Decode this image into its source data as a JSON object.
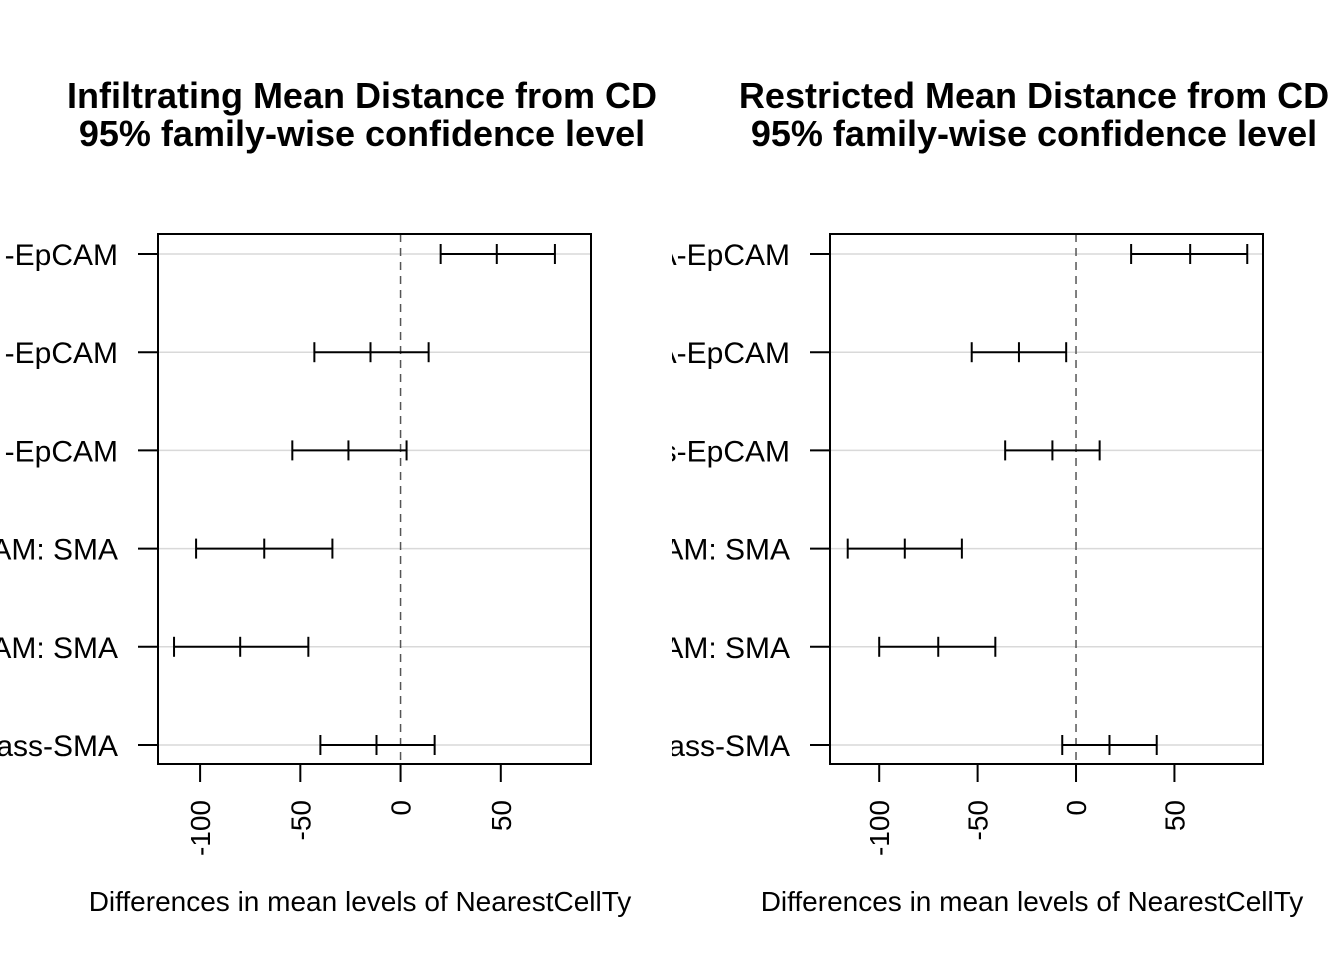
{
  "chart_data": [
    {
      "type": "interval",
      "title": "Infiltrating Mean Distance from CD",
      "subtitle": "95% family-wise confidence level",
      "xlabel": "Differences in mean levels of NearestCellTy",
      "categories": [
        "-EpCAM",
        "-EpCAM",
        "-EpCAM",
        "AM: SMA",
        "AM: SMA",
        "ass-SMA"
      ],
      "lower": [
        20,
        -43,
        -54,
        -102,
        -113,
        -40
      ],
      "estimate": [
        48,
        -15,
        -26,
        -68,
        -80,
        -12
      ],
      "upper": [
        77,
        14,
        3,
        -34,
        -46,
        17
      ],
      "xlim": [
        -121,
        95
      ],
      "xticks": [
        "-100",
        "-50",
        "0",
        "50"
      ],
      "xtick_values": [
        -100,
        -50,
        0,
        50
      ],
      "reference_line": 0,
      "grid": true
    },
    {
      "type": "interval",
      "title": "Restricted Mean Distance from CD",
      "subtitle": "95% family-wise confidence level",
      "xlabel": "Differences in mean levels of NearestCellTy",
      "categories": [
        "EpCAM: SMA-EpCAM",
        "SMA-EpCAM",
        "Unclass-EpCAM",
        "SMA-EpCAM: SMA",
        "Unclass-EpCAM: SMA",
        "Unclass-SMA"
      ],
      "lower": [
        28,
        -53,
        -36,
        -116,
        -100,
        -7
      ],
      "estimate": [
        58,
        -29,
        -12,
        -87,
        -70,
        17
      ],
      "upper": [
        87,
        -5,
        12,
        -58,
        -41,
        41
      ],
      "xlim": [
        -125,
        95
      ],
      "xticks": [
        "-100",
        "-50",
        "0",
        "50"
      ],
      "xtick_values": [
        -100,
        -50,
        0,
        50
      ],
      "reference_line": 0,
      "grid": true
    }
  ]
}
